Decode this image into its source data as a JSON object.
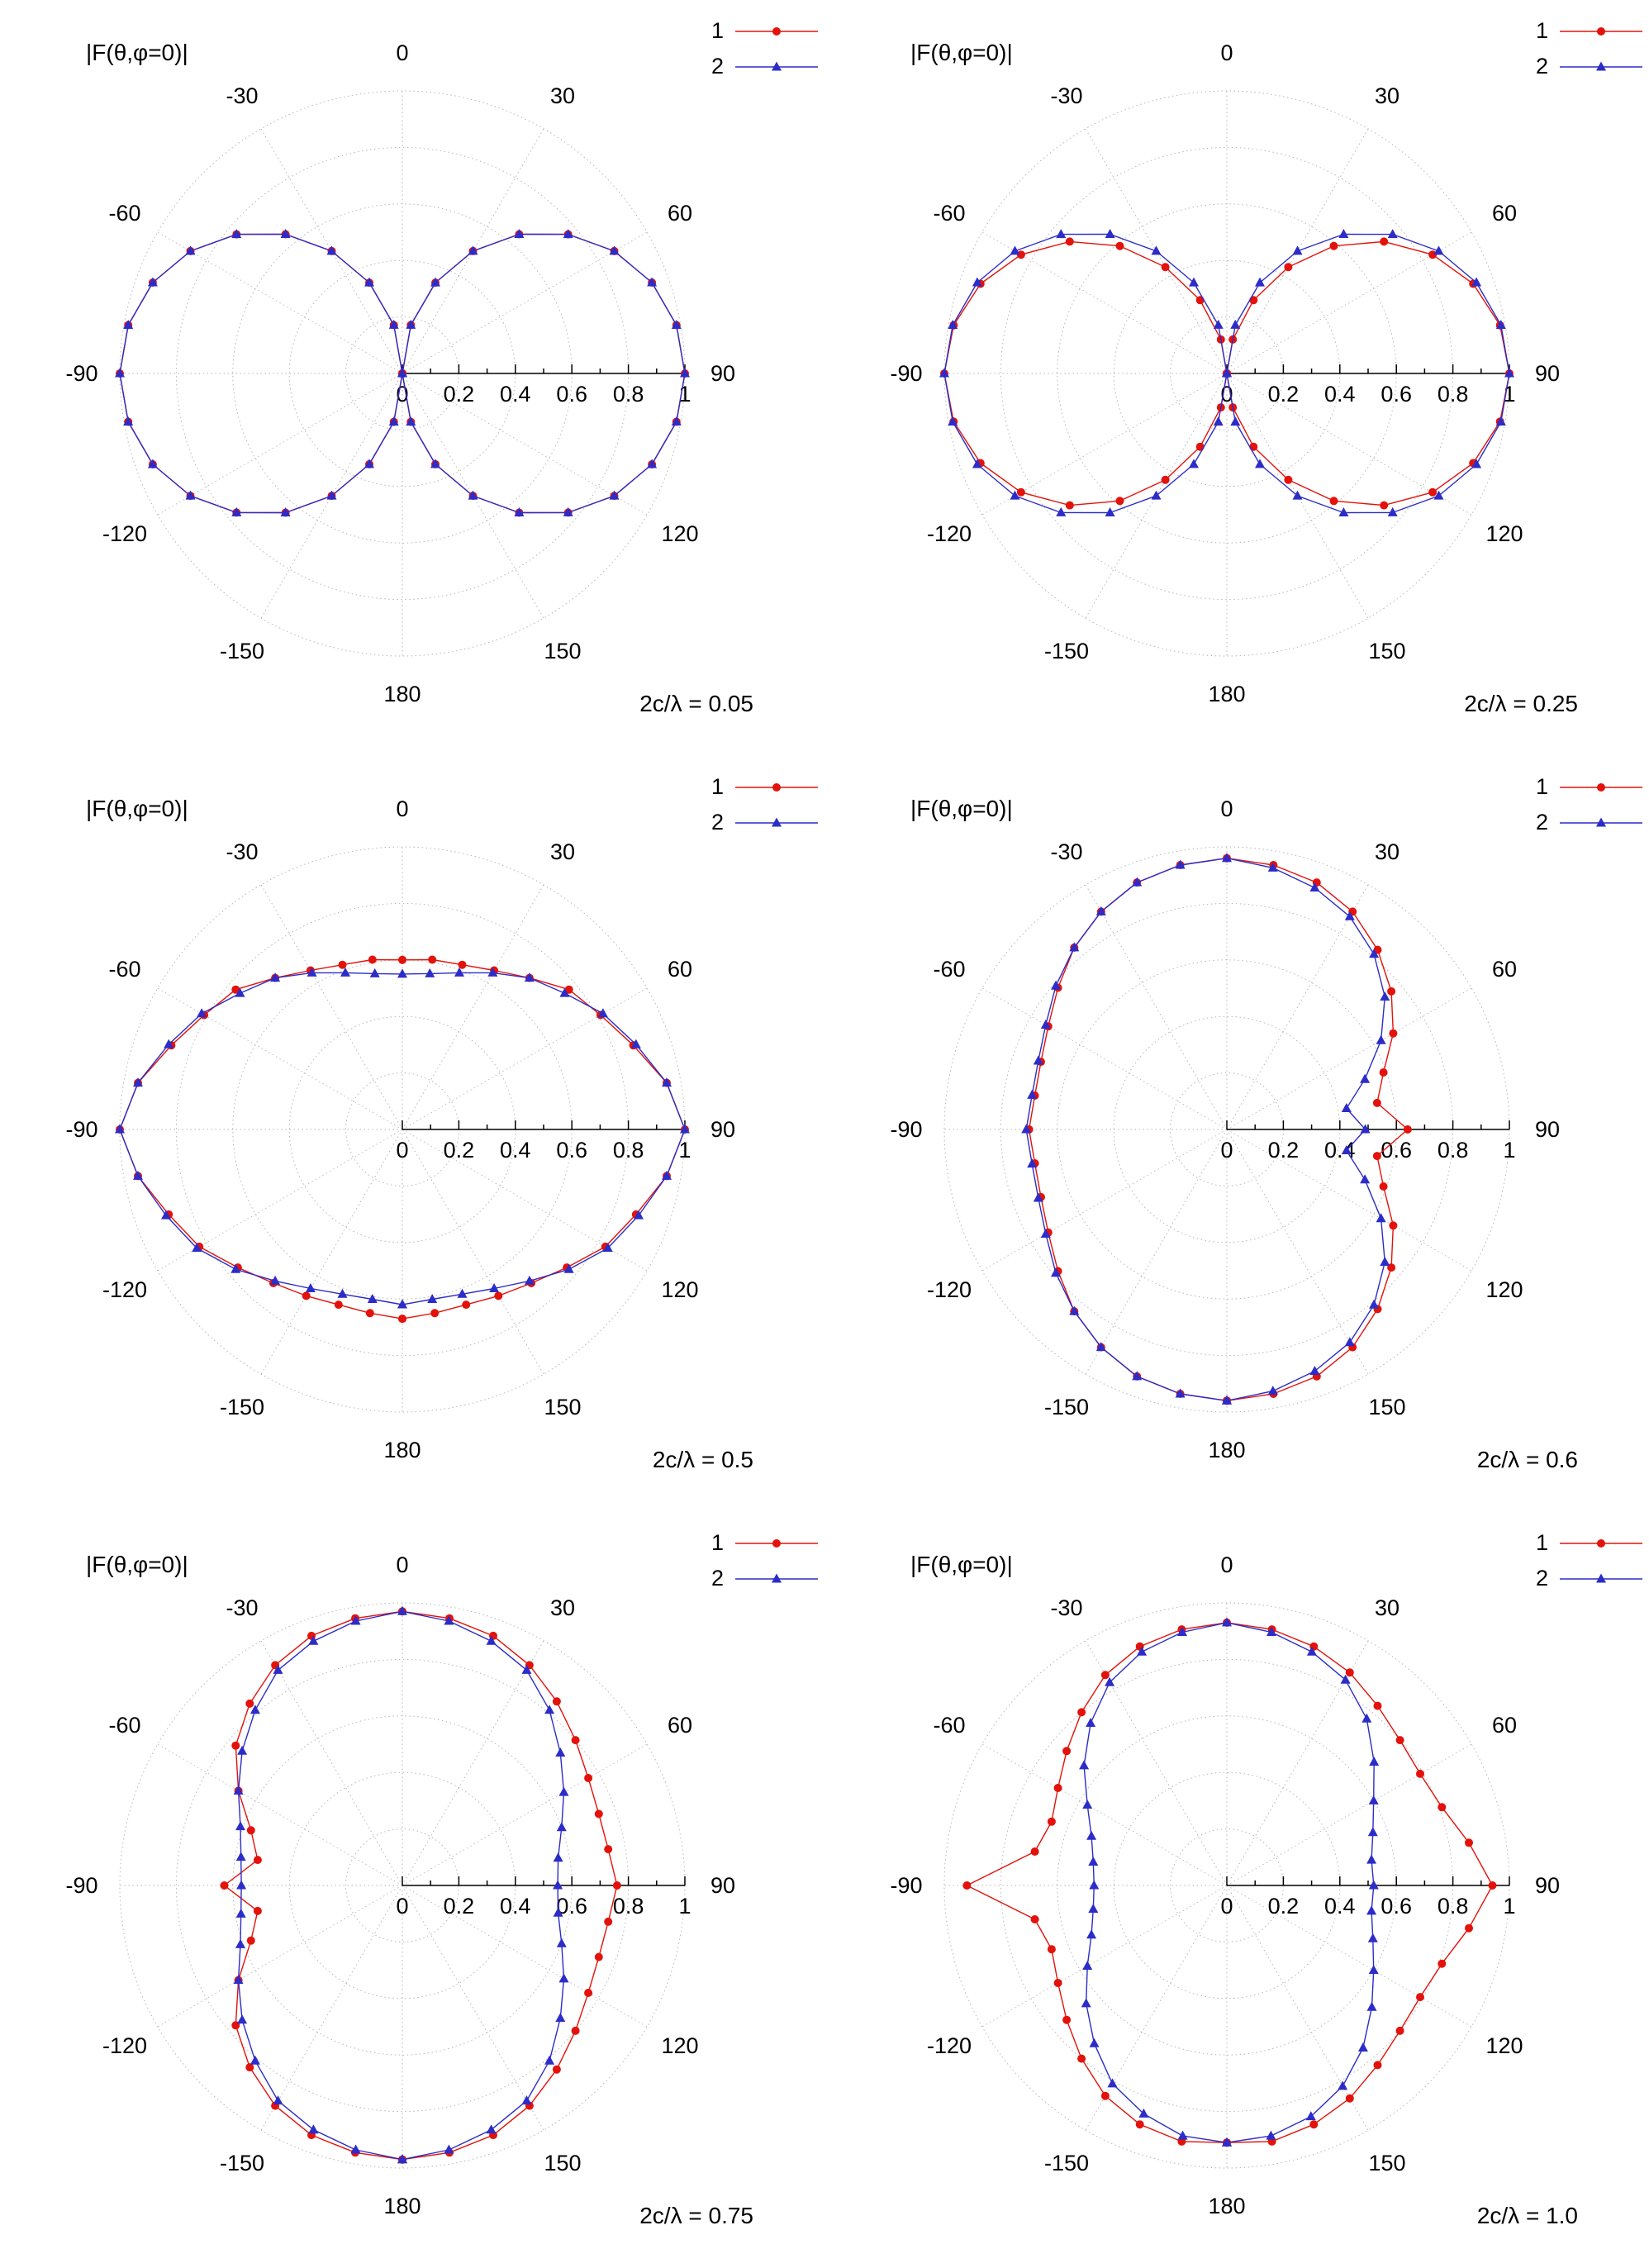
{
  "page": {
    "background": "#ffffff"
  },
  "config": {
    "colors": {
      "series1": "#e3120b",
      "series2": "#2c2cc8",
      "grid": "#b5b5b5",
      "axis": "#000000",
      "text": "#000000"
    },
    "series_styles": [
      {
        "color": "#e3120b",
        "marker": "circle"
      },
      {
        "color": "#2c2cc8",
        "marker": "triangle"
      }
    ],
    "angle_tick_labels": [
      {
        "deg": 0,
        "label": "0"
      },
      {
        "deg": 30,
        "label": "30"
      },
      {
        "deg": 60,
        "label": "60"
      },
      {
        "deg": 90,
        "label": "90"
      },
      {
        "deg": 120,
        "label": "120"
      },
      {
        "deg": 150,
        "label": "150"
      },
      {
        "deg": 180,
        "label": "180"
      },
      {
        "deg": -150,
        "label": "-150"
      },
      {
        "deg": -120,
        "label": "-120"
      },
      {
        "deg": -90,
        "label": "-90"
      },
      {
        "deg": -60,
        "label": "-60"
      },
      {
        "deg": -30,
        "label": "-30"
      }
    ],
    "radial_tick_labels": [
      {
        "r": 0,
        "label": "0"
      },
      {
        "r": 0.2,
        "label": "0.2"
      },
      {
        "r": 0.4,
        "label": "0.4"
      },
      {
        "r": 0.6,
        "label": "0.6"
      },
      {
        "r": 0.8,
        "label": "0.8"
      },
      {
        "r": 1,
        "label": "1"
      }
    ]
  },
  "chart_data": [
    {
      "type": "line",
      "subtype": "polar",
      "title": "|F(θ,φ=0)|",
      "caption": "2c/λ = 0.05",
      "theta_start_deg": -180,
      "theta_step_deg": 10,
      "r_range": [
        0,
        1
      ],
      "grid": true,
      "legend_position": "top-right",
      "series": [
        {
          "name": "1",
          "r": [
            0,
            0.174,
            0.342,
            0.5,
            0.643,
            0.766,
            0.866,
            0.94,
            0.985,
            1,
            0.985,
            0.94,
            0.866,
            0.766,
            0.643,
            0.5,
            0.342,
            0.174,
            0,
            0.174,
            0.342,
            0.5,
            0.643,
            0.766,
            0.866,
            0.94,
            0.985,
            1,
            0.985,
            0.94,
            0.866,
            0.766,
            0.643,
            0.5,
            0.342,
            0.174,
            0
          ]
        },
        {
          "name": "2",
          "r": [
            0,
            0.174,
            0.342,
            0.5,
            0.643,
            0.766,
            0.866,
            0.94,
            0.985,
            1,
            0.985,
            0.94,
            0.866,
            0.766,
            0.643,
            0.5,
            0.342,
            0.174,
            0,
            0.174,
            0.342,
            0.5,
            0.643,
            0.766,
            0.866,
            0.94,
            0.985,
            1,
            0.985,
            0.94,
            0.866,
            0.766,
            0.643,
            0.5,
            0.342,
            0.174,
            0
          ]
        }
      ]
    },
    {
      "type": "line",
      "subtype": "polar",
      "title": "|F(θ,φ=0)|",
      "caption": "2c/λ = 0.25",
      "theta_start_deg": -180,
      "theta_step_deg": 10,
      "r_range": [
        0,
        1
      ],
      "grid": true,
      "legend_position": "top-right",
      "series": [
        {
          "name": "1",
          "r": [
            0,
            0.122,
            0.276,
            0.435,
            0.589,
            0.726,
            0.841,
            0.928,
            0.982,
            1,
            0.982,
            0.928,
            0.841,
            0.726,
            0.589,
            0.435,
            0.276,
            0.122,
            0,
            0.122,
            0.276,
            0.435,
            0.589,
            0.726,
            0.841,
            0.928,
            0.982,
            1,
            0.982,
            0.928,
            0.841,
            0.726,
            0.589,
            0.435,
            0.276,
            0.122,
            0
          ]
        },
        {
          "name": "2",
          "r": [
            0,
            0.174,
            0.342,
            0.5,
            0.643,
            0.766,
            0.866,
            0.94,
            0.985,
            1,
            0.985,
            0.94,
            0.866,
            0.766,
            0.643,
            0.5,
            0.342,
            0.174,
            0,
            0.174,
            0.342,
            0.5,
            0.643,
            0.766,
            0.866,
            0.94,
            0.985,
            1,
            0.985,
            0.94,
            0.866,
            0.766,
            0.643,
            0.5,
            0.342,
            0.174,
            0
          ]
        }
      ]
    },
    {
      "type": "line",
      "subtype": "polar",
      "title": "|F(θ,φ=0)|",
      "caption": "2c/λ = 0.5",
      "theta_start_deg": -180,
      "theta_step_deg": 10,
      "r_range": [
        0,
        1
      ],
      "grid": true,
      "legend_position": "top-right",
      "series": [
        {
          "name": "1",
          "r": [
            0.67,
            0.66,
            0.66,
            0.68,
            0.71,
            0.76,
            0.83,
            0.88,
            0.95,
            1,
            0.95,
            0.87,
            0.81,
            0.77,
            0.7,
            0.65,
            0.62,
            0.61,
            0.6,
            0.61,
            0.62,
            0.65,
            0.7,
            0.77,
            0.81,
            0.87,
            0.95,
            1,
            0.95,
            0.88,
            0.83,
            0.76,
            0.71,
            0.68,
            0.66,
            0.66,
            0.67
          ]
        },
        {
          "name": "2",
          "r": [
            0.62,
            0.61,
            0.62,
            0.65,
            0.7,
            0.77,
            0.84,
            0.89,
            0.95,
            1,
            0.95,
            0.88,
            0.82,
            0.75,
            0.7,
            0.64,
            0.59,
            0.56,
            0.55,
            0.56,
            0.59,
            0.64,
            0.7,
            0.75,
            0.82,
            0.88,
            0.95,
            1,
            0.95,
            0.89,
            0.84,
            0.77,
            0.7,
            0.65,
            0.62,
            0.61,
            0.62
          ]
        }
      ]
    },
    {
      "type": "line",
      "subtype": "polar",
      "title": "|F(θ,φ=0)|",
      "caption": "2c/λ = 0.6",
      "theta_start_deg": -180,
      "theta_step_deg": 10,
      "r_range": [
        0,
        1
      ],
      "grid": true,
      "legend_position": "top-right",
      "series": [
        {
          "name": "1",
          "r": [
            0.96,
            0.95,
            0.93,
            0.89,
            0.84,
            0.78,
            0.73,
            0.7,
            0.69,
            0.7,
            0.69,
            0.7,
            0.73,
            0.78,
            0.84,
            0.89,
            0.93,
            0.95,
            0.96,
            0.95,
            0.93,
            0.89,
            0.83,
            0.76,
            0.68,
            0.59,
            0.54,
            0.64,
            0.54,
            0.59,
            0.68,
            0.76,
            0.83,
            0.89,
            0.93,
            0.95,
            0.96
          ]
        },
        {
          "name": "2",
          "r": [
            0.96,
            0.95,
            0.93,
            0.89,
            0.84,
            0.79,
            0.74,
            0.71,
            0.7,
            0.71,
            0.7,
            0.71,
            0.74,
            0.79,
            0.84,
            0.89,
            0.93,
            0.95,
            0.96,
            0.94,
            0.91,
            0.87,
            0.81,
            0.73,
            0.63,
            0.52,
            0.43,
            0.49,
            0.43,
            0.52,
            0.63,
            0.73,
            0.81,
            0.87,
            0.91,
            0.94,
            0.96
          ]
        }
      ]
    },
    {
      "type": "line",
      "subtype": "polar",
      "title": "|F(θ,φ=0)|",
      "caption": "2c/λ = 0.75",
      "theta_start_deg": -180,
      "theta_step_deg": 10,
      "r_range": [
        0,
        1
      ],
      "grid": true,
      "legend_position": "top-right",
      "series": [
        {
          "name": "1",
          "r": [
            0.97,
            0.96,
            0.94,
            0.9,
            0.84,
            0.77,
            0.67,
            0.57,
            0.52,
            0.63,
            0.52,
            0.57,
            0.67,
            0.77,
            0.84,
            0.9,
            0.94,
            0.96,
            0.97,
            0.96,
            0.94,
            0.9,
            0.85,
            0.8,
            0.76,
            0.74,
            0.74,
            0.76,
            0.74,
            0.74,
            0.76,
            0.8,
            0.85,
            0.9,
            0.94,
            0.96,
            0.97
          ]
        },
        {
          "name": "2",
          "r": [
            0.97,
            0.95,
            0.92,
            0.88,
            0.81,
            0.74,
            0.67,
            0.61,
            0.58,
            0.57,
            0.58,
            0.61,
            0.67,
            0.74,
            0.81,
            0.88,
            0.92,
            0.95,
            0.97,
            0.95,
            0.92,
            0.88,
            0.81,
            0.73,
            0.66,
            0.6,
            0.56,
            0.55,
            0.56,
            0.6,
            0.66,
            0.73,
            0.81,
            0.88,
            0.92,
            0.95,
            0.97
          ]
        }
      ]
    },
    {
      "type": "line",
      "subtype": "polar",
      "title": "|F(θ,φ=0)|",
      "caption": "2c/λ = 1.0",
      "theta_start_deg": -180,
      "theta_step_deg": 10,
      "r_range": [
        0,
        1
      ],
      "grid": true,
      "legend_position": "top-right",
      "series": [
        {
          "name": "1",
          "r": [
            0.91,
            0.92,
            0.9,
            0.86,
            0.8,
            0.74,
            0.69,
            0.66,
            0.69,
            0.92,
            0.69,
            0.66,
            0.69,
            0.74,
            0.8,
            0.86,
            0.9,
            0.92,
            0.93,
            0.92,
            0.9,
            0.87,
            0.83,
            0.8,
            0.79,
            0.81,
            0.87,
            0.94,
            0.87,
            0.81,
            0.79,
            0.8,
            0.83,
            0.87,
            0.9,
            0.92,
            0.91
          ]
        },
        {
          "name": "2",
          "r": [
            0.91,
            0.9,
            0.86,
            0.81,
            0.73,
            0.65,
            0.57,
            0.51,
            0.48,
            0.47,
            0.48,
            0.51,
            0.57,
            0.66,
            0.75,
            0.83,
            0.88,
            0.91,
            0.93,
            0.91,
            0.88,
            0.84,
            0.77,
            0.68,
            0.6,
            0.55,
            0.52,
            0.52,
            0.52,
            0.55,
            0.6,
            0.67,
            0.75,
            0.82,
            0.87,
            0.9,
            0.91
          ]
        }
      ]
    }
  ]
}
